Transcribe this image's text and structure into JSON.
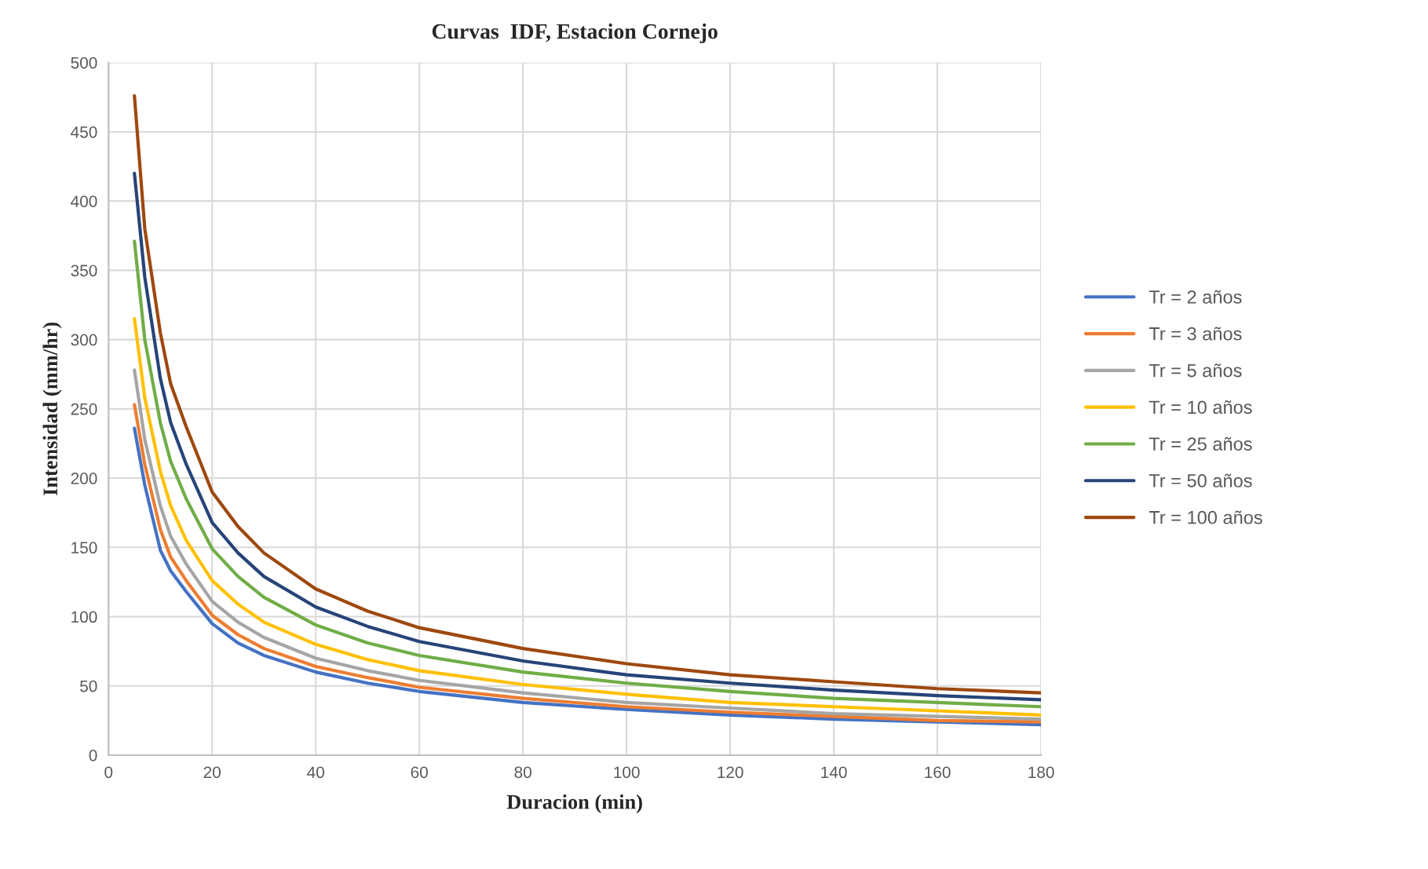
{
  "chart_data": {
    "type": "line",
    "title": "Curvas  IDF, Estacion Cornejo",
    "xlabel": "Duracion (min)",
    "ylabel": "Intensidad (mm/hr)",
    "x": [
      5,
      7,
      10,
      12,
      15,
      20,
      25,
      30,
      40,
      50,
      60,
      80,
      100,
      120,
      140,
      160,
      180
    ],
    "series": [
      {
        "name": "Tr = 2 años",
        "color": "#4472c4",
        "values": [
          236,
          195,
          148,
          133,
          118,
          95,
          81,
          72,
          60,
          52,
          46,
          38,
          33,
          29,
          26,
          24,
          22
        ]
      },
      {
        "name": "Tr = 3 años",
        "color": "#ed7d31",
        "values": [
          253,
          210,
          163,
          143,
          126,
          101,
          87,
          77,
          64,
          56,
          49,
          41,
          35,
          31,
          28,
          25,
          24
        ]
      },
      {
        "name": "Tr = 5 años",
        "color": "#a5a5a5",
        "values": [
          278,
          228,
          180,
          158,
          138,
          111,
          96,
          85,
          70,
          61,
          54,
          45,
          38,
          34,
          30,
          28,
          26
        ]
      },
      {
        "name": "Tr = 10 años",
        "color": "#ffc000",
        "values": [
          315,
          258,
          205,
          180,
          155,
          126,
          109,
          96,
          80,
          69,
          61,
          51,
          44,
          38,
          35,
          32,
          29
        ]
      },
      {
        "name": "Tr = 25 años",
        "color": "#70ad47",
        "values": [
          371,
          300,
          240,
          212,
          185,
          149,
          129,
          114,
          94,
          81,
          72,
          60,
          52,
          46,
          41,
          38,
          35
        ]
      },
      {
        "name": "Tr = 50 años",
        "color": "#264478",
        "values": [
          420,
          345,
          272,
          240,
          210,
          168,
          146,
          129,
          107,
          93,
          82,
          68,
          58,
          52,
          47,
          43,
          40
        ]
      },
      {
        "name": "Tr = 100 años",
        "color": "#9e480e",
        "values": [
          476,
          380,
          305,
          268,
          237,
          190,
          165,
          146,
          120,
          104,
          92,
          77,
          66,
          58,
          53,
          48,
          45
        ]
      }
    ],
    "xlim": [
      0,
      180
    ],
    "xticks": [
      0,
      20,
      40,
      60,
      80,
      100,
      120,
      140,
      160,
      180
    ],
    "ylim": [
      0,
      500
    ],
    "yticks": [
      0,
      50,
      100,
      150,
      200,
      250,
      300,
      350,
      400,
      450,
      500
    ],
    "grid": true,
    "legend": "right",
    "marker": "none",
    "line_style": "solid"
  }
}
